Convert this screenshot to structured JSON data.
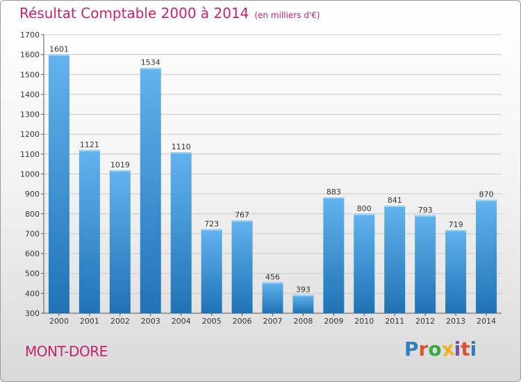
{
  "title": "Résultat Comptable 2000 à 2014",
  "subtitle": "(en milliers d'€)",
  "place": "MONT-DORE",
  "logo": {
    "text": "Proxiti",
    "colors": [
      "#2f7fc0",
      "#e0522b",
      "#3aa843",
      "#f0b320",
      "#7a4fa0",
      "#e0522b",
      "#2f7fc0"
    ]
  },
  "colors": {
    "title": "#c8216f",
    "bar_light": "#62b3ee",
    "bar_dark": "#1f73b5",
    "grid": "#c9c9c9"
  },
  "chart_data": {
    "type": "bar",
    "categories": [
      "2000",
      "2001",
      "2002",
      "2003",
      "2004",
      "2005",
      "2006",
      "2007",
      "2008",
      "2009",
      "2010",
      "2011",
      "2012",
      "2013",
      "2014"
    ],
    "values": [
      1601,
      1121,
      1019,
      1534,
      1110,
      723,
      767,
      456,
      393,
      883,
      800,
      841,
      793,
      719,
      870
    ],
    "yticks": [
      300,
      400,
      500,
      600,
      700,
      800,
      900,
      1000,
      1100,
      1200,
      1300,
      1400,
      1500,
      1600,
      1700
    ],
    "ylim": [
      300,
      1700
    ],
    "grid": true,
    "data_labels": true,
    "title": "Résultat Comptable 2000 à 2014",
    "xlabel": "",
    "ylabel": ""
  }
}
